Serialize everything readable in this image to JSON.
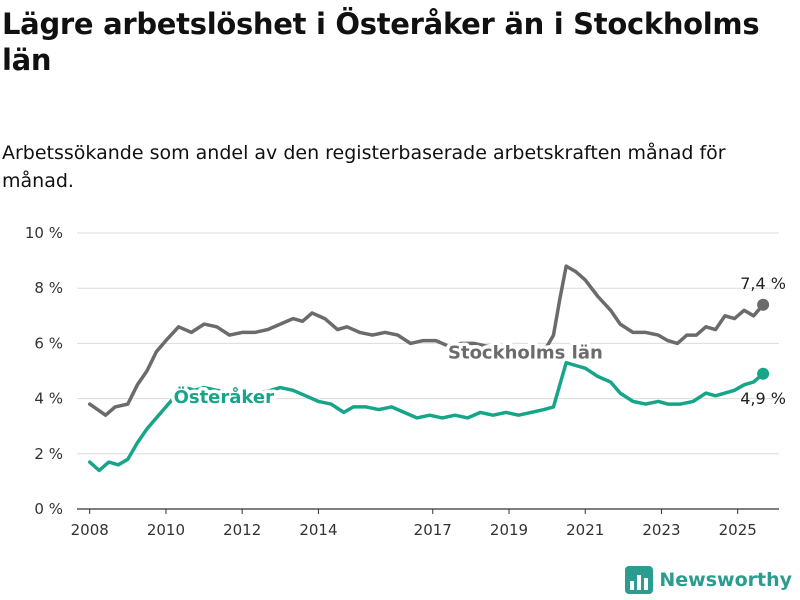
{
  "title": "Lägre arbetslöshet i Österåker än i Stockholms län",
  "subtitle": "Arbetssökande som andel av den registerbaserade arbetskraften månad för månad.",
  "brand": {
    "name": "Newsworthy",
    "icon": "bar-chart-logo-icon",
    "color": "#2a9d8f"
  },
  "chart_data": {
    "type": "line",
    "x_ticks": [
      "2008",
      "2010",
      "2012",
      "2014",
      "2017",
      "2019",
      "2021",
      "2023",
      "2025"
    ],
    "y_ticks": [
      "0 %",
      "2 %",
      "4 %",
      "6 %",
      "8 %",
      "10 %"
    ],
    "ylim": [
      0,
      10
    ],
    "xlim": [
      "2007-09",
      "2026-02"
    ],
    "grid": true,
    "legend": "inline labels on lines",
    "series": [
      {
        "name": "Stockholms län",
        "color": "#6b6b6e",
        "end_label": "7,4 %",
        "points": [
          [
            "2008-01",
            3.8
          ],
          [
            "2008-06",
            3.4
          ],
          [
            "2008-09",
            3.7
          ],
          [
            "2009-01",
            3.8
          ],
          [
            "2009-04",
            4.5
          ],
          [
            "2009-07",
            5.0
          ],
          [
            "2009-10",
            5.7
          ],
          [
            "2010-01",
            6.1
          ],
          [
            "2010-05",
            6.6
          ],
          [
            "2010-09",
            6.4
          ],
          [
            "2011-01",
            6.7
          ],
          [
            "2011-05",
            6.6
          ],
          [
            "2011-09",
            6.3
          ],
          [
            "2012-01",
            6.4
          ],
          [
            "2012-05",
            6.4
          ],
          [
            "2012-09",
            6.5
          ],
          [
            "2013-01",
            6.7
          ],
          [
            "2013-05",
            6.9
          ],
          [
            "2013-08",
            6.8
          ],
          [
            "2013-11",
            7.1
          ],
          [
            "2014-03",
            6.9
          ],
          [
            "2014-07",
            6.5
          ],
          [
            "2014-10",
            6.6
          ],
          [
            "2015-02",
            6.4
          ],
          [
            "2015-06",
            6.3
          ],
          [
            "2015-10",
            6.4
          ],
          [
            "2016-02",
            6.3
          ],
          [
            "2016-06",
            6.0
          ],
          [
            "2016-10",
            6.1
          ],
          [
            "2017-02",
            6.1
          ],
          [
            "2017-06",
            5.9
          ],
          [
            "2017-10",
            6.0
          ],
          [
            "2018-02",
            6.0
          ],
          [
            "2018-06",
            5.9
          ],
          [
            "2018-10",
            5.8
          ],
          [
            "2019-02",
            5.8
          ],
          [
            "2019-06",
            5.7
          ],
          [
            "2019-10",
            5.8
          ],
          [
            "2020-01",
            5.9
          ],
          [
            "2020-03",
            6.3
          ],
          [
            "2020-05",
            7.6
          ],
          [
            "2020-07",
            8.8
          ],
          [
            "2020-10",
            8.6
          ],
          [
            "2021-01",
            8.3
          ],
          [
            "2021-05",
            7.7
          ],
          [
            "2021-09",
            7.2
          ],
          [
            "2021-12",
            6.7
          ],
          [
            "2022-04",
            6.4
          ],
          [
            "2022-08",
            6.4
          ],
          [
            "2022-12",
            6.3
          ],
          [
            "2023-03",
            6.1
          ],
          [
            "2023-06",
            6.0
          ],
          [
            "2023-09",
            6.3
          ],
          [
            "2023-12",
            6.3
          ],
          [
            "2024-03",
            6.6
          ],
          [
            "2024-06",
            6.5
          ],
          [
            "2024-09",
            7.0
          ],
          [
            "2024-12",
            6.9
          ],
          [
            "2025-03",
            7.2
          ],
          [
            "2025-06",
            7.0
          ],
          [
            "2025-09",
            7.4
          ]
        ]
      },
      {
        "name": "Österåker",
        "color": "#17a589",
        "end_label": "4,9 %",
        "points": [
          [
            "2008-01",
            1.7
          ],
          [
            "2008-04",
            1.4
          ],
          [
            "2008-07",
            1.7
          ],
          [
            "2008-10",
            1.6
          ],
          [
            "2009-01",
            1.8
          ],
          [
            "2009-04",
            2.4
          ],
          [
            "2009-07",
            2.9
          ],
          [
            "2009-10",
            3.3
          ],
          [
            "2010-01",
            3.7
          ],
          [
            "2010-04",
            4.1
          ],
          [
            "2010-07",
            4.4
          ],
          [
            "2010-10",
            4.3
          ],
          [
            "2011-01",
            4.4
          ],
          [
            "2011-05",
            4.3
          ],
          [
            "2011-09",
            4.2
          ],
          [
            "2012-01",
            4.0
          ],
          [
            "2012-06",
            4.2
          ],
          [
            "2012-10",
            4.3
          ],
          [
            "2013-01",
            4.4
          ],
          [
            "2013-05",
            4.3
          ],
          [
            "2013-09",
            4.1
          ],
          [
            "2014-01",
            3.9
          ],
          [
            "2014-05",
            3.8
          ],
          [
            "2014-09",
            3.5
          ],
          [
            "2014-12",
            3.7
          ],
          [
            "2015-04",
            3.7
          ],
          [
            "2015-08",
            3.6
          ],
          [
            "2015-12",
            3.7
          ],
          [
            "2016-04",
            3.5
          ],
          [
            "2016-08",
            3.3
          ],
          [
            "2016-12",
            3.4
          ],
          [
            "2017-04",
            3.3
          ],
          [
            "2017-08",
            3.4
          ],
          [
            "2017-12",
            3.3
          ],
          [
            "2018-04",
            3.5
          ],
          [
            "2018-08",
            3.4
          ],
          [
            "2018-12",
            3.5
          ],
          [
            "2019-04",
            3.4
          ],
          [
            "2019-08",
            3.5
          ],
          [
            "2019-12",
            3.6
          ],
          [
            "2020-03",
            3.7
          ],
          [
            "2020-05",
            4.5
          ],
          [
            "2020-07",
            5.3
          ],
          [
            "2020-10",
            5.2
          ],
          [
            "2021-01",
            5.1
          ],
          [
            "2021-05",
            4.8
          ],
          [
            "2021-09",
            4.6
          ],
          [
            "2021-12",
            4.2
          ],
          [
            "2022-04",
            3.9
          ],
          [
            "2022-08",
            3.8
          ],
          [
            "2022-12",
            3.9
          ],
          [
            "2023-03",
            3.8
          ],
          [
            "2023-07",
            3.8
          ],
          [
            "2023-11",
            3.9
          ],
          [
            "2024-03",
            4.2
          ],
          [
            "2024-06",
            4.1
          ],
          [
            "2024-09",
            4.2
          ],
          [
            "2024-12",
            4.3
          ],
          [
            "2025-03",
            4.5
          ],
          [
            "2025-06",
            4.6
          ],
          [
            "2025-09",
            4.9
          ]
        ]
      }
    ]
  }
}
